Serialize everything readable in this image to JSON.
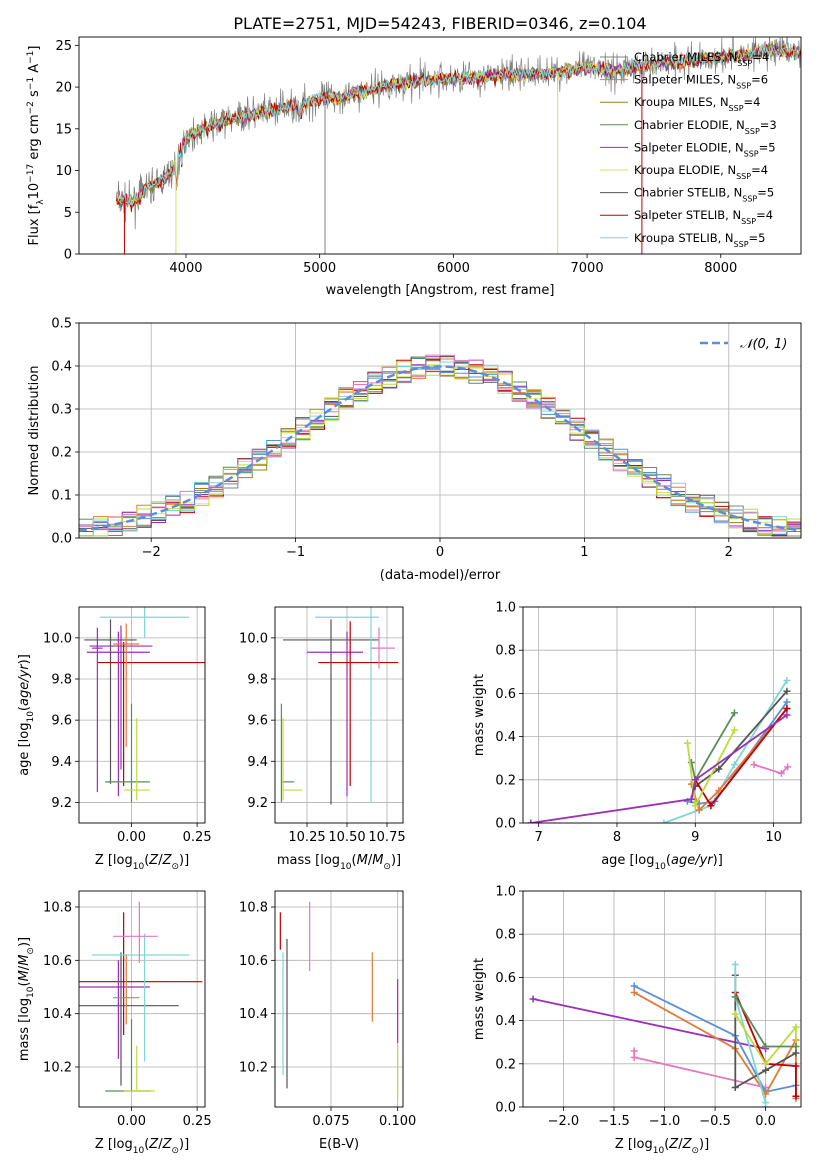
{
  "figure_title": "PLATE=2751, MJD=54243, FIBERID=0346, z=0.104",
  "series_colors": [
    "#808080",
    "#e07b39",
    "#a27c1a",
    "#5b8c5a",
    "#9b2fb5",
    "#d9e05a",
    "#555555",
    "#c00000",
    "#7fd6d6"
  ],
  "extra_colors": {
    "pink": "#e377c2",
    "blue": "#5a8fd8",
    "lime": "#bcdc3c"
  },
  "chart_data": [
    {
      "id": "spectrum",
      "type": "line",
      "title": "",
      "xlabel": "wavelength [Angstrom, rest frame]",
      "ylabel": "Flux [f_λ10^-17 erg cm^-2 s^-1 A^-1]",
      "xlim": [
        3200,
        8600
      ],
      "ylim": [
        0,
        26
      ],
      "xticks": [
        "4000",
        "5000",
        "6000",
        "7000",
        "8000"
      ],
      "yticks": [
        "0",
        "5",
        "10",
        "15",
        "20",
        "25"
      ],
      "legend_position": "right",
      "legend": [
        {
          "label": "Chabrier MILES, N",
          "sub": "SSP",
          "tail": "=4"
        },
        {
          "label": "Salpeter MILES, N",
          "sub": "SSP",
          "tail": "=6"
        },
        {
          "label": "Kroupa MILES, N",
          "sub": "SSP",
          "tail": "=4"
        },
        {
          "label": "Chabrier ELODIE, N",
          "sub": "SSP",
          "tail": "=3"
        },
        {
          "label": "Salpeter ELODIE, N",
          "sub": "SSP",
          "tail": "=5"
        },
        {
          "label": "Kroupa ELODIE, N",
          "sub": "SSP",
          "tail": "=4"
        },
        {
          "label": "Chabrier STELIB, N",
          "sub": "SSP",
          "tail": "=5"
        },
        {
          "label": "Salpeter STELIB, N",
          "sub": "SSP",
          "tail": "=4"
        },
        {
          "label": "Kroupa STELIB, N",
          "sub": "SSP",
          "tail": "=5"
        }
      ],
      "continuum": [
        [
          3480,
          6.5
        ],
        [
          3600,
          6.2
        ],
        [
          3700,
          7.8
        ],
        [
          3800,
          8.5
        ],
        [
          3900,
          10
        ],
        [
          4000,
          14
        ],
        [
          4200,
          15.5
        ],
        [
          4400,
          16.5
        ],
        [
          4600,
          17
        ],
        [
          4800,
          17.8
        ],
        [
          5000,
          18.5
        ],
        [
          5200,
          19
        ],
        [
          5400,
          19.8
        ],
        [
          5600,
          20.5
        ],
        [
          5800,
          20.8
        ],
        [
          6000,
          21
        ],
        [
          6200,
          21.2
        ],
        [
          6400,
          21.5
        ],
        [
          6600,
          21.6
        ],
        [
          6800,
          21.8
        ],
        [
          7000,
          22.3
        ],
        [
          7200,
          22
        ],
        [
          7400,
          22.4
        ],
        [
          7600,
          23
        ],
        [
          7800,
          23.2
        ],
        [
          8000,
          23.6
        ],
        [
          8200,
          24
        ],
        [
          8400,
          24.5
        ],
        [
          8600,
          24
        ]
      ],
      "spikes": [
        [
          3540,
          0
        ],
        [
          3925,
          0
        ],
        [
          5040,
          0
        ],
        [
          6780,
          0
        ],
        [
          7410,
          0
        ]
      ]
    },
    {
      "id": "residuals",
      "type": "step-histogram",
      "xlabel": "(data-model)/error",
      "ylabel": "Normed distribution",
      "xlim": [
        -2.5,
        2.5
      ],
      "ylim": [
        0,
        0.5
      ],
      "xticks": [
        "−2",
        "−1",
        "0",
        "1",
        "2"
      ],
      "yticks": [
        "0.0",
        "0.1",
        "0.2",
        "0.3",
        "0.4",
        "0.5"
      ],
      "legend_label": "𝒩(0, 1)",
      "legend_position": "top-right",
      "bin_width": 0.1
    },
    {
      "id": "age_vs_Z",
      "type": "errorbar",
      "xlabel": "Z [log10(Z/Z⊙)]",
      "ylabel": "age  [log10(age/yr)]",
      "xlim": [
        -0.2,
        0.28
      ],
      "ylim": [
        9.1,
        10.15
      ],
      "xticks": [
        "0.00",
        "0.25"
      ],
      "yticks": [
        "9.2",
        "9.4",
        "9.6",
        "9.8",
        "10.0"
      ],
      "points": [
        {
          "x": -0.08,
          "y": 9.99,
          "xe": [
            0.1,
            0.1
          ],
          "ye": [
            0.7,
            0.1
          ],
          "c": "#555555"
        },
        {
          "x": -0.04,
          "y": 9.96,
          "xe": [
            0.12,
            0.12
          ],
          "ye": [
            0.6,
            0.1
          ],
          "c": "#9b2fb5"
        },
        {
          "x": 0.05,
          "y": 10.1,
          "xe": [
            0.17,
            0.17
          ],
          "ye": [
            0.1,
            0.05
          ],
          "c": "#7fd6d6"
        },
        {
          "x": -0.03,
          "y": 9.88,
          "xe": [
            0.1,
            0.32
          ],
          "ye": [
            0.6,
            0.1
          ],
          "c": "#c00000"
        },
        {
          "x": -0.05,
          "y": 9.93,
          "xe": [
            0.12,
            0.12
          ],
          "ye": [
            0.7,
            0.1
          ],
          "c": "#9b2fb5"
        },
        {
          "x": -0.02,
          "y": 9.97,
          "xe": [
            0.05,
            0.05
          ],
          "ye": [
            0.5,
            0.1
          ],
          "c": "#e07b39"
        },
        {
          "x": 0.0,
          "y": 9.3,
          "xe": [
            0.1,
            0.07
          ],
          "ye": [
            0.1,
            0.38
          ],
          "c": "#5b8c5a"
        },
        {
          "x": 0.02,
          "y": 9.26,
          "xe": [
            0.05,
            0.05
          ],
          "ye": [
            0.05,
            0.35
          ],
          "c": "#bcdc3c"
        },
        {
          "x": -0.13,
          "y": 9.95,
          "xe": [
            0.02,
            0.02
          ],
          "ye": [
            0.7,
            0.1
          ],
          "c": "#9b2fb5"
        }
      ]
    },
    {
      "id": "age_vs_mass",
      "type": "errorbar",
      "xlabel": "mass [log10(M/M⊙)]",
      "ylabel": "",
      "xlim": [
        10.05,
        10.85
      ],
      "ylim": [
        9.1,
        10.15
      ],
      "xticks": [
        "10.25",
        "10.50",
        "10.75"
      ],
      "yticks": [
        "9.2",
        "9.4",
        "9.6",
        "9.8",
        "10.0"
      ],
      "points": [
        {
          "x": 10.4,
          "y": 9.99,
          "xe": [
            0.3,
            0.3
          ],
          "ye": [
            0.8,
            0.1
          ],
          "c": "#555555"
        },
        {
          "x": 10.5,
          "y": 9.93,
          "xe": [
            0.25,
            0.1
          ],
          "ye": [
            0.7,
            0.1
          ],
          "c": "#9b2fb5"
        },
        {
          "x": 10.65,
          "y": 10.1,
          "xe": [
            0.35,
            0.05
          ],
          "ye": [
            0.9,
            0.05
          ],
          "c": "#7fd6d6"
        },
        {
          "x": 10.52,
          "y": 9.88,
          "xe": [
            0.2,
            0.3
          ],
          "ye": [
            0.6,
            0.2
          ],
          "c": "#c00000"
        },
        {
          "x": 10.7,
          "y": 9.95,
          "xe": [
            0.05,
            0.1
          ],
          "ye": [
            0.1,
            0.1
          ],
          "c": "#e377c2"
        },
        {
          "x": 10.09,
          "y": 9.3,
          "xe": [
            0.0,
            0.08
          ],
          "ye": [
            0.1,
            0.38
          ],
          "c": "#5b8c5a"
        },
        {
          "x": 10.1,
          "y": 9.26,
          "xe": [
            0.0,
            0.12
          ],
          "ye": [
            0.05,
            0.35
          ],
          "c": "#bcdc3c"
        }
      ]
    },
    {
      "id": "weight_vs_age",
      "type": "line",
      "xlabel": "age  [log10(age/yr)]",
      "ylabel": "mass weight",
      "xlim": [
        6.8,
        10.35
      ],
      "ylim": [
        0,
        1
      ],
      "xticks": [
        "7",
        "8",
        "9",
        "10"
      ],
      "yticks": [
        "0.0",
        "0.2",
        "0.4",
        "0.6",
        "0.8",
        "1.0"
      ],
      "series": [
        {
          "c": "#7fd6d6",
          "x": [
            8.6,
            9.05,
            9.2,
            9.5,
            10.17
          ],
          "y": [
            0.0,
            0.06,
            0.08,
            0.27,
            0.66
          ]
        },
        {
          "c": "#5a8fd8",
          "x": [
            8.9,
            9.05,
            9.25,
            10.17
          ],
          "y": [
            0.1,
            0.09,
            0.1,
            0.56
          ]
        },
        {
          "c": "#555555",
          "x": [
            8.95,
            9.0,
            9.3,
            10.17
          ],
          "y": [
            0.11,
            0.17,
            0.25,
            0.61
          ]
        },
        {
          "c": "#e07b39",
          "x": [
            8.95,
            9.05,
            9.3,
            10.17
          ],
          "y": [
            0.18,
            0.06,
            0.15,
            0.53
          ]
        },
        {
          "c": "#c00000",
          "x": [
            9.0,
            9.2,
            10.17
          ],
          "y": [
            0.2,
            0.08,
            0.53
          ]
        },
        {
          "c": "#5b8c5a",
          "x": [
            8.95,
            9.0,
            9.5
          ],
          "y": [
            0.28,
            0.2,
            0.51
          ]
        },
        {
          "c": "#bcdc3c",
          "x": [
            8.9,
            9.0,
            9.5
          ],
          "y": [
            0.37,
            0.08,
            0.43
          ]
        },
        {
          "c": "#e377c2",
          "x": [
            9.75,
            10.1,
            10.18
          ],
          "y": [
            0.27,
            0.23,
            0.26
          ]
        },
        {
          "c": "#9b2fb5",
          "x": [
            6.9,
            8.95,
            9.0,
            10.17
          ],
          "y": [
            0.0,
            0.11,
            0.2,
            0.5
          ]
        }
      ]
    },
    {
      "id": "mass_vs_Z",
      "type": "errorbar",
      "xlabel": "Z [log10(Z/Z⊙)]",
      "ylabel": "mass [log10(M/M⊙)]",
      "xlim": [
        -0.2,
        0.28
      ],
      "ylim": [
        10.05,
        10.86
      ],
      "xticks": [
        "0.00",
        "0.25"
      ],
      "yticks": [
        "10.2",
        "10.4",
        "10.6",
        "10.8"
      ],
      "points": [
        {
          "x": -0.03,
          "y": 10.52,
          "xe": [
            0.2,
            0.3
          ],
          "ye": [
            0.2,
            0.26
          ],
          "c": "#c00000"
        },
        {
          "x": -0.04,
          "y": 10.43,
          "xe": [
            0.16,
            0.22
          ],
          "ye": [
            0.3,
            0.2
          ],
          "c": "#555555"
        },
        {
          "x": -0.05,
          "y": 10.5,
          "xe": [
            0.16,
            0.12
          ],
          "ye": [
            0.27,
            0.1
          ],
          "c": "#9b2fb5"
        },
        {
          "x": 0.05,
          "y": 10.62,
          "xe": [
            0.2,
            0.17
          ],
          "ye": [
            0.4,
            0.08
          ],
          "c": "#7fd6d6"
        },
        {
          "x": 0.03,
          "y": 10.69,
          "xe": [
            0.1,
            0.07
          ],
          "ye": [
            0.1,
            0.13
          ],
          "c": "#e377c2"
        },
        {
          "x": -0.02,
          "y": 10.46,
          "xe": [
            0.05,
            0.05
          ],
          "ye": [
            0.1,
            0.16
          ],
          "c": "#e07b39"
        },
        {
          "x": 0.0,
          "y": 10.11,
          "xe": [
            0.1,
            0.07
          ],
          "ye": [
            0.0,
            0.27
          ],
          "c": "#5b8c5a"
        },
        {
          "x": 0.02,
          "y": 10.11,
          "xe": [
            0.05,
            0.07
          ],
          "ye": [
            0.0,
            0.17
          ],
          "c": "#bcdc3c"
        }
      ]
    },
    {
      "id": "mass_vs_ebv",
      "type": "errorbar",
      "xlabel": "E(B-V)",
      "ylabel": "",
      "xlim": [
        0.054,
        0.102
      ],
      "ylim": [
        10.05,
        10.86
      ],
      "xticks": [
        "0.075",
        "0.100"
      ],
      "yticks": [
        "10.2",
        "10.4",
        "10.6",
        "10.8"
      ],
      "points": [
        {
          "x": 0.056,
          "y": 10.71,
          "xe": [
            0,
            0
          ],
          "ye": [
            0.07,
            0.07
          ],
          "c": "#c00000"
        },
        {
          "x": 0.057,
          "y": 10.4,
          "xe": [
            0,
            0
          ],
          "ye": [
            0.23,
            0.23
          ],
          "c": "#7fd6d6"
        },
        {
          "x": 0.0585,
          "y": 10.4,
          "xe": [
            0,
            0
          ],
          "ye": [
            0.28,
            0.28
          ],
          "c": "#555555"
        },
        {
          "x": 0.067,
          "y": 10.69,
          "xe": [
            0,
            0
          ],
          "ye": [
            0.13,
            0.13
          ],
          "c": "#e377c2"
        },
        {
          "x": 0.0905,
          "y": 10.5,
          "xe": [
            0,
            0
          ],
          "ye": [
            0.13,
            0.13
          ],
          "c": "#e07b39"
        },
        {
          "x": 0.1,
          "y": 10.41,
          "xe": [
            0,
            0
          ],
          "ye": [
            0.12,
            0.12
          ],
          "c": "#9b2fb5"
        },
        {
          "x": 0.1,
          "y": 10.18,
          "xe": [
            0,
            0
          ],
          "ye": [
            0.1,
            0.1
          ],
          "c": "#bcdc3c"
        }
      ]
    },
    {
      "id": "weight_vs_Z",
      "type": "line",
      "xlabel": "Z [log10(Z/Z⊙)]",
      "ylabel": "mass weight",
      "xlim": [
        -2.4,
        0.35
      ],
      "ylim": [
        0,
        1
      ],
      "xticks": [
        "−2.0",
        "−1.5",
        "−1.0",
        "−0.5",
        "0.0"
      ],
      "yticks": [
        "0.0",
        "0.2",
        "0.4",
        "0.6",
        "0.8",
        "1.0"
      ],
      "series": [
        {
          "c": "#9b2fb5",
          "x": [
            -2.3,
            0.0
          ],
          "y": [
            0.5,
            0.27
          ]
        },
        {
          "c": "#e377c2",
          "x": [
            -1.3,
            -1.3,
            0.0
          ],
          "y": [
            0.26,
            0.23,
            0.09
          ]
        },
        {
          "c": "#5a8fd8",
          "x": [
            -1.3,
            -0.3,
            0.0,
            0.3
          ],
          "y": [
            0.56,
            0.33,
            0.07,
            0.1
          ]
        },
        {
          "c": "#e07b39",
          "x": [
            -1.3,
            -0.3,
            0.0,
            0.3,
            0.3
          ],
          "y": [
            0.53,
            0.27,
            0.06,
            0.31,
            0.04
          ]
        },
        {
          "c": "#555555",
          "x": [
            -0.3,
            -0.3,
            0.0,
            0.3
          ],
          "y": [
            0.61,
            0.09,
            0.17,
            0.25
          ]
        },
        {
          "c": "#c00000",
          "x": [
            -0.3,
            0.0,
            0.3,
            0.3
          ],
          "y": [
            0.53,
            0.2,
            0.19,
            0.05
          ]
        },
        {
          "c": "#7fd6d6",
          "x": [
            -0.3,
            -0.3,
            0.0,
            0.0
          ],
          "y": [
            0.66,
            0.51,
            0.02,
            0.0
          ]
        },
        {
          "c": "#bcdc3c",
          "x": [
            -0.3,
            0.0,
            0.3,
            0.3
          ],
          "y": [
            0.43,
            0.2,
            0.37,
            0.28
          ]
        },
        {
          "c": "#5b8c5a",
          "x": [
            -0.3,
            0.0,
            0.3
          ],
          "y": [
            0.51,
            0.28,
            0.28
          ]
        }
      ]
    }
  ]
}
